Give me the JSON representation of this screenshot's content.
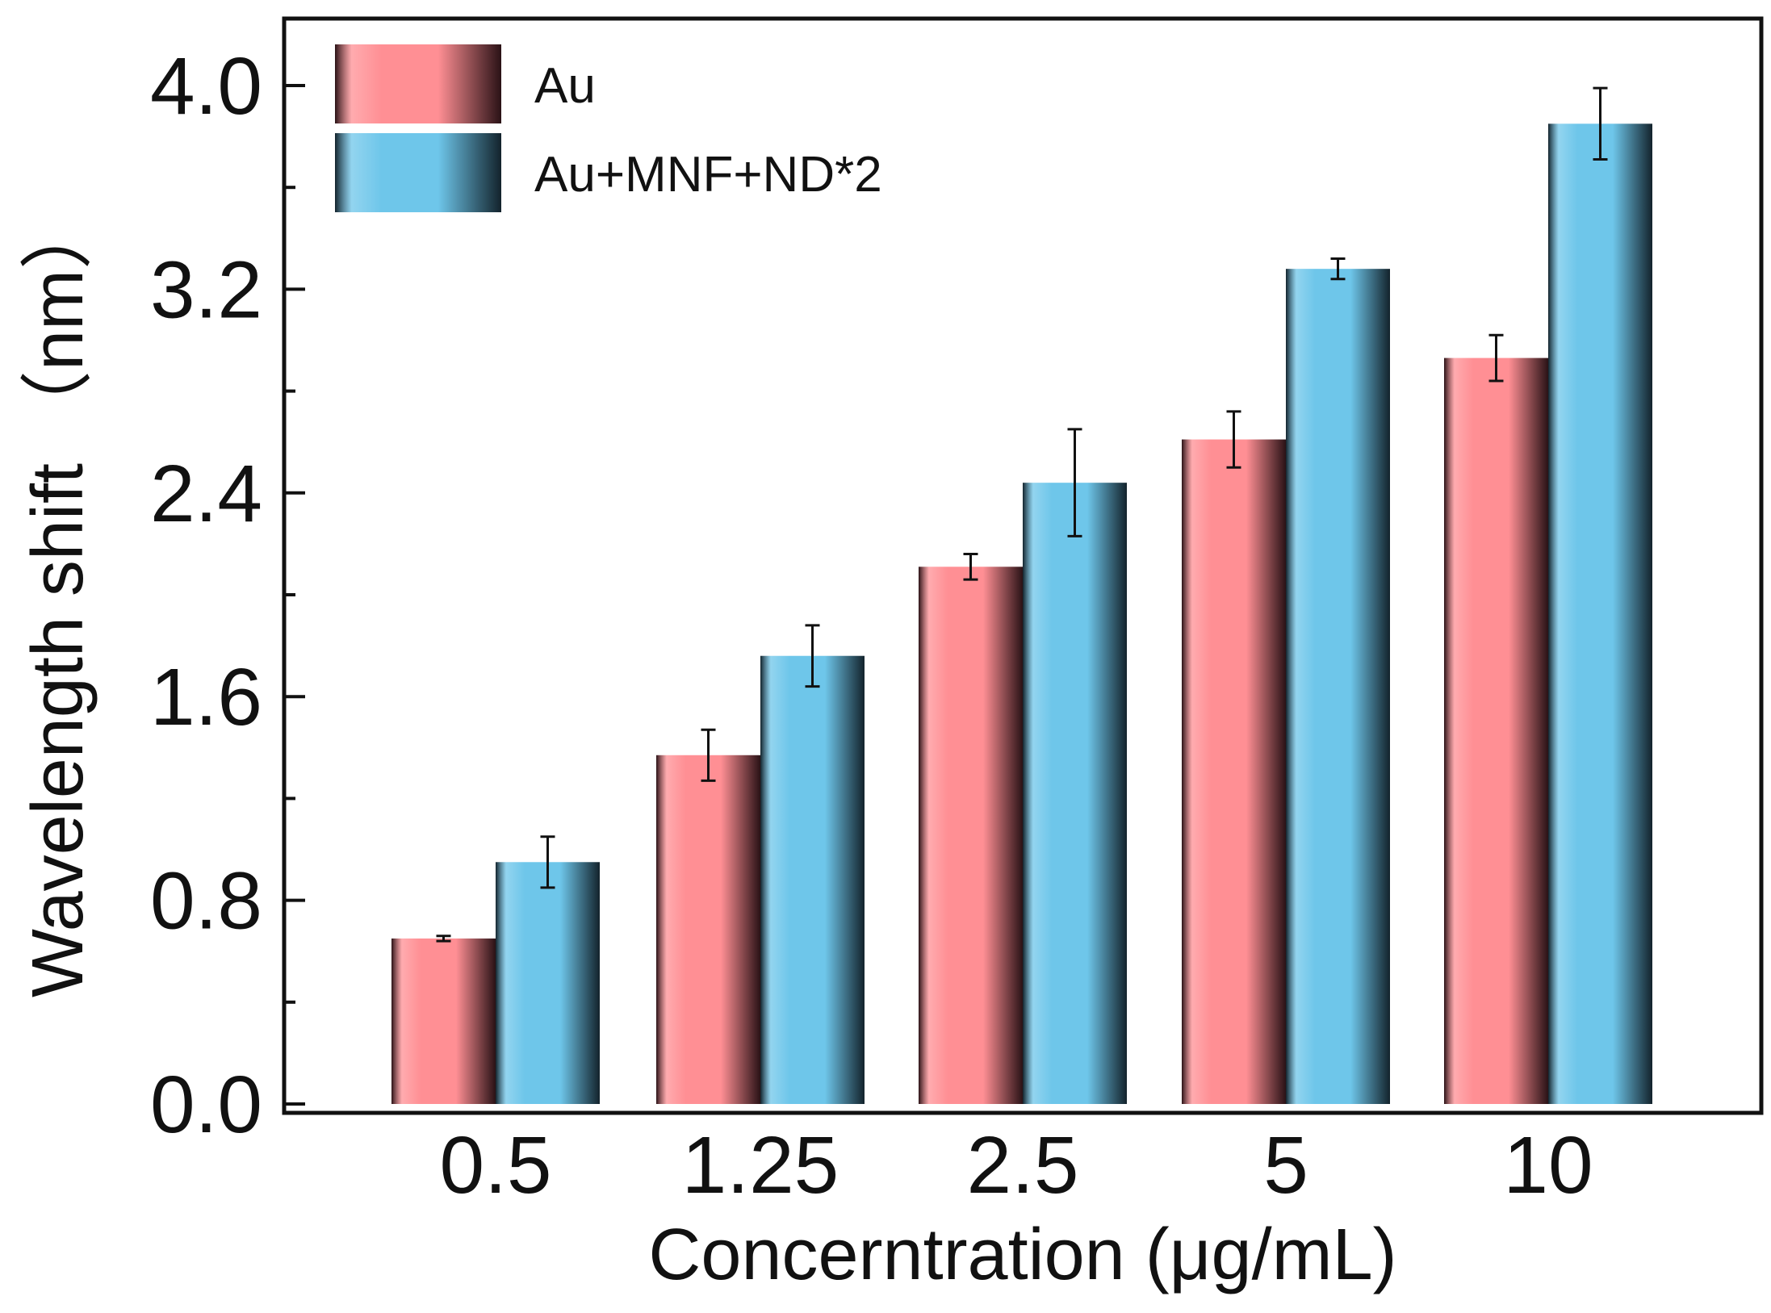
{
  "chart_data": {
    "type": "bar",
    "title": "",
    "xlabel": "Concerntration  (μg/mL)",
    "ylabel": "Wavelength shift （nm）",
    "categories": [
      "0.5",
      "1.25",
      "2.5",
      "5",
      "10"
    ],
    "ylim": [
      0,
      4.2
    ],
    "yticks": [
      "0.0",
      "0.8",
      "1.6",
      "2.4",
      "3.2",
      "4.0"
    ],
    "ytick_values": [
      0,
      0.8,
      1.6,
      2.4,
      3.2,
      4.0
    ],
    "minor_ytick_values": [
      0.4,
      1.2,
      2.0,
      2.8,
      3.6
    ],
    "grid": false,
    "legend_position": "top-left",
    "series": [
      {
        "name": "Au",
        "values": [
          0.65,
          1.37,
          2.11,
          2.61,
          2.93
        ],
        "errors": [
          0.01,
          0.1,
          0.05,
          0.11,
          0.09
        ],
        "color": "#ff8f94",
        "edge_color": "#2a1216"
      },
      {
        "name": "Au+MNF+ND*2",
        "values": [
          0.95,
          1.76,
          2.44,
          3.28,
          3.85
        ],
        "errors": [
          0.1,
          0.12,
          0.21,
          0.04,
          0.14
        ],
        "color": "#6ec6ea",
        "edge_color": "#13232c"
      }
    ]
  }
}
